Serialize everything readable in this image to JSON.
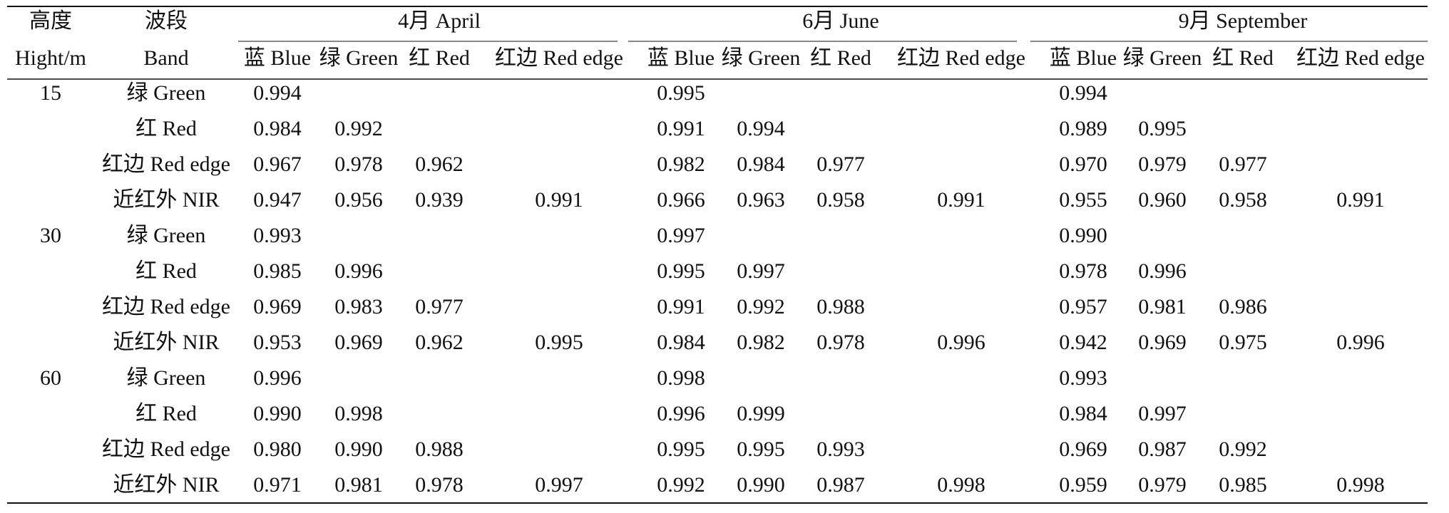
{
  "header": {
    "height": [
      "高度",
      "Hight/m"
    ],
    "band": [
      "波段",
      "Band"
    ],
    "months": [
      {
        "name": "4月 April",
        "bands": [
          "蓝 Blue",
          "绿 Green",
          "红 Red",
          "红边 Red edge"
        ]
      },
      {
        "name": "6月 June",
        "bands": [
          "蓝 Blue",
          "绿 Green",
          "红 Red",
          "红边 Red edge"
        ]
      },
      {
        "name": "9月 September",
        "bands": [
          "蓝 Blue",
          "绿 Green",
          "红 Red",
          "红边 Red edge"
        ]
      }
    ]
  },
  "groups": [
    {
      "height": "15",
      "rows": [
        {
          "band": "绿 Green",
          "values": [
            "0.994",
            null,
            null,
            null,
            "0.995",
            null,
            null,
            null,
            "0.994",
            null,
            null,
            null
          ]
        },
        {
          "band": "红 Red",
          "values": [
            "0.984",
            "0.992",
            null,
            null,
            "0.991",
            "0.994",
            null,
            null,
            "0.989",
            "0.995",
            null,
            null
          ]
        },
        {
          "band": "红边 Red edge",
          "values": [
            "0.967",
            "0.978",
            "0.962",
            null,
            "0.982",
            "0.984",
            "0.977",
            null,
            "0.970",
            "0.979",
            "0.977",
            null
          ]
        },
        {
          "band": "近红外 NIR",
          "values": [
            "0.947",
            "0.956",
            "0.939",
            "0.991",
            "0.966",
            "0.963",
            "0.958",
            "0.991",
            "0.955",
            "0.960",
            "0.958",
            "0.991"
          ]
        }
      ]
    },
    {
      "height": "30",
      "rows": [
        {
          "band": "绿 Green",
          "values": [
            "0.993",
            null,
            null,
            null,
            "0.997",
            null,
            null,
            null,
            "0.990",
            null,
            null,
            null
          ]
        },
        {
          "band": "红 Red",
          "values": [
            "0.985",
            "0.996",
            null,
            null,
            "0.995",
            "0.997",
            null,
            null,
            "0.978",
            "0.996",
            null,
            null
          ]
        },
        {
          "band": "红边 Red edge",
          "values": [
            "0.969",
            "0.983",
            "0.977",
            null,
            "0.991",
            "0.992",
            "0.988",
            null,
            "0.957",
            "0.981",
            "0.986",
            null
          ]
        },
        {
          "band": "近红外 NIR",
          "values": [
            "0.953",
            "0.969",
            "0.962",
            "0.995",
            "0.984",
            "0.982",
            "0.978",
            "0.996",
            "0.942",
            "0.969",
            "0.975",
            "0.996"
          ]
        }
      ]
    },
    {
      "height": "60",
      "rows": [
        {
          "band": "绿 Green",
          "values": [
            "0.996",
            null,
            null,
            null,
            "0.998",
            null,
            null,
            null,
            "0.993",
            null,
            null,
            null
          ]
        },
        {
          "band": "红 Red",
          "values": [
            "0.990",
            "0.998",
            null,
            null,
            "0.996",
            "0.999",
            null,
            null,
            "0.984",
            "0.997",
            null,
            null
          ]
        },
        {
          "band": "红边 Red edge",
          "values": [
            "0.980",
            "0.990",
            "0.988",
            null,
            "0.995",
            "0.995",
            "0.993",
            null,
            "0.969",
            "0.987",
            "0.992",
            null
          ]
        },
        {
          "band": "近红外 NIR",
          "values": [
            "0.971",
            "0.981",
            "0.978",
            "0.997",
            "0.992",
            "0.990",
            "0.987",
            "0.998",
            "0.959",
            "0.979",
            "0.985",
            "0.998"
          ]
        }
      ]
    }
  ]
}
